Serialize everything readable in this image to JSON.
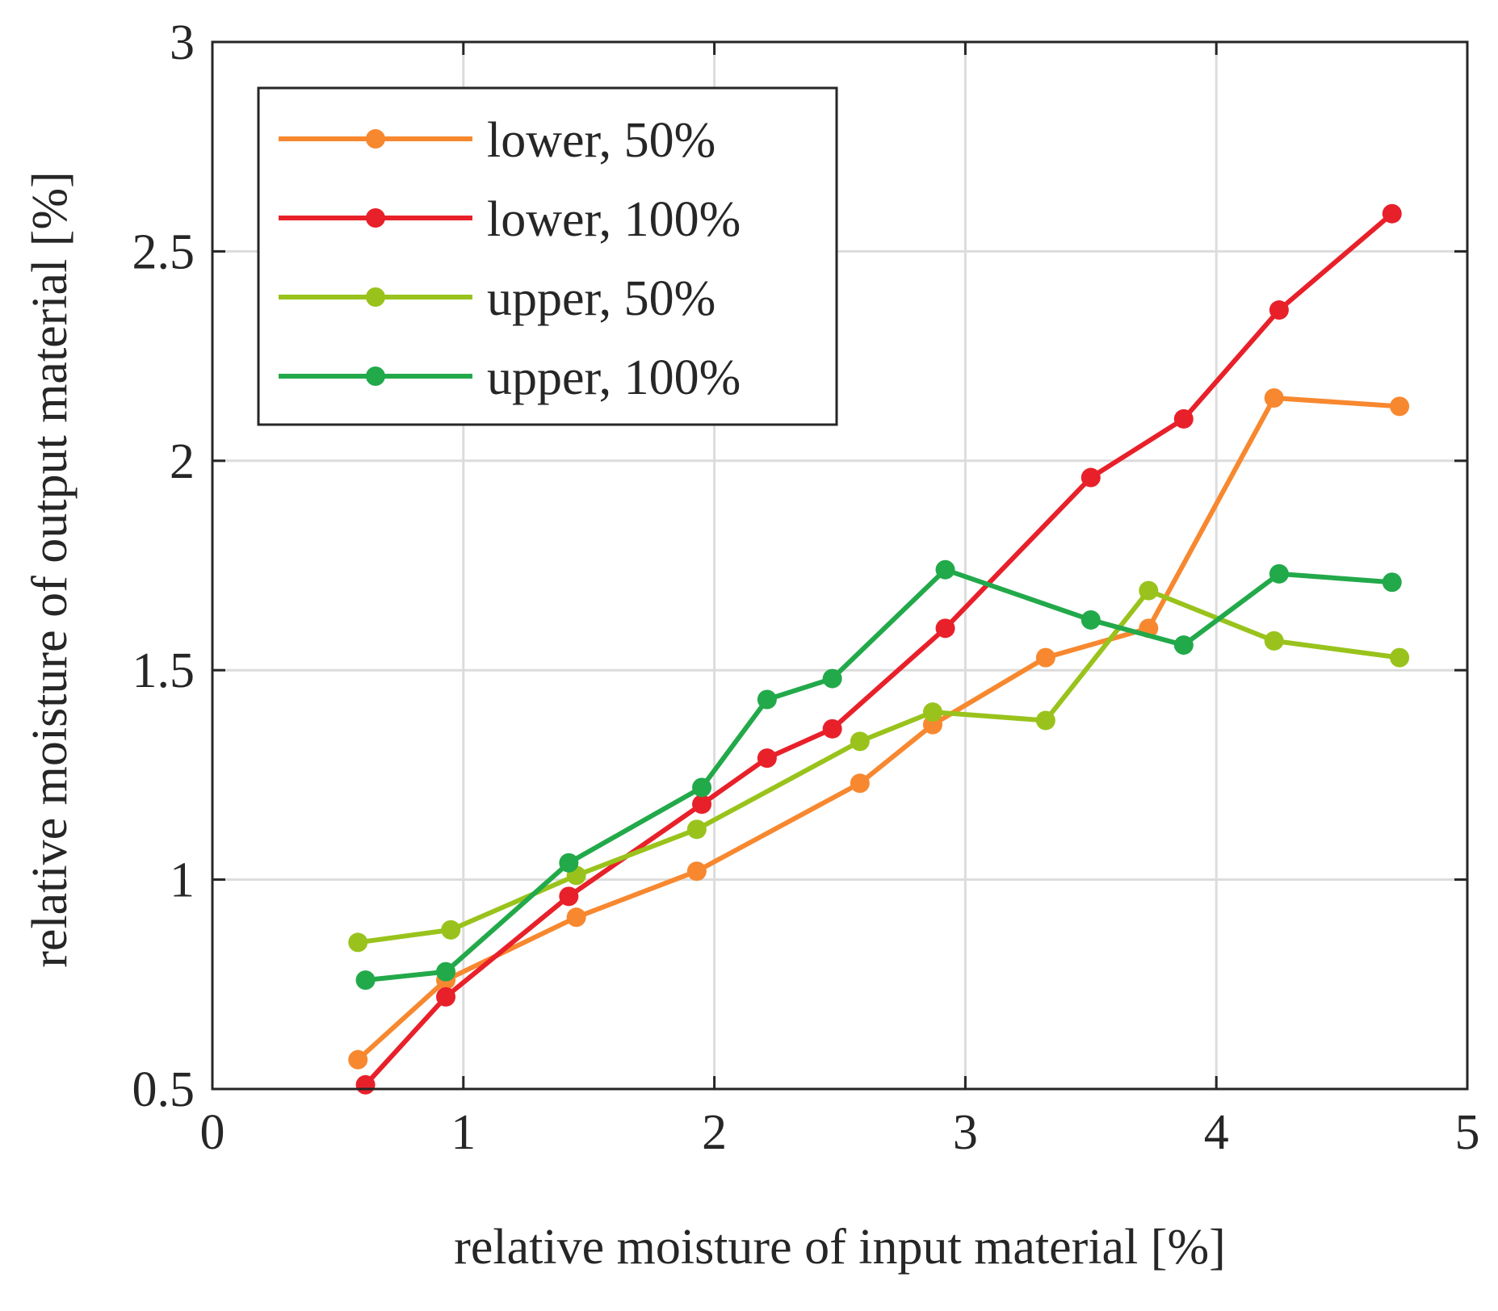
{
  "chart_data": {
    "type": "line",
    "title": "",
    "xlabel": "relative moisture of input material [%]",
    "ylabel": "relative moisture of output material [%]",
    "xlim": [
      0,
      5
    ],
    "ylim": [
      0.5,
      3
    ],
    "xticks": [
      0,
      1,
      2,
      3,
      4,
      5
    ],
    "xtick_labels": [
      "0",
      "1",
      "2",
      "3",
      "4",
      "5"
    ],
    "yticks": [
      0.5,
      1,
      1.5,
      2,
      2.5,
      3
    ],
    "ytick_labels": [
      "0.5",
      "1",
      "1.5",
      "2",
      "2.5",
      "3"
    ],
    "grid": true,
    "legend_position": "top-left",
    "series": [
      {
        "name": "lower, 50%",
        "color": "#f7882f",
        "x": [
          0.58,
          0.93,
          1.45,
          1.93,
          2.58,
          2.87,
          3.32,
          3.73,
          4.23,
          4.73
        ],
        "y": [
          0.57,
          0.76,
          0.91,
          1.02,
          1.23,
          1.37,
          1.53,
          1.6,
          2.15,
          2.13
        ]
      },
      {
        "name": "lower, 100%",
        "color": "#e8202a",
        "x": [
          0.61,
          0.93,
          1.42,
          1.95,
          2.21,
          2.47,
          2.92,
          3.5,
          3.87,
          4.25,
          4.7
        ],
        "y": [
          0.51,
          0.72,
          0.96,
          1.18,
          1.29,
          1.36,
          1.6,
          1.96,
          2.1,
          2.36,
          2.59
        ]
      },
      {
        "name": "upper, 50%",
        "color": "#99c31c",
        "x": [
          0.58,
          0.95,
          1.45,
          1.93,
          2.58,
          2.87,
          3.32,
          3.73,
          4.23,
          4.73
        ],
        "y": [
          0.85,
          0.88,
          1.01,
          1.12,
          1.33,
          1.4,
          1.38,
          1.69,
          1.57,
          1.53
        ]
      },
      {
        "name": "upper, 100%",
        "color": "#22a94a",
        "x": [
          0.61,
          0.93,
          1.42,
          1.95,
          2.21,
          2.47,
          2.92,
          3.5,
          3.87,
          4.25,
          4.7
        ],
        "y": [
          0.76,
          0.78,
          1.04,
          1.22,
          1.43,
          1.48,
          1.74,
          1.62,
          1.56,
          1.73,
          1.71
        ]
      }
    ]
  }
}
